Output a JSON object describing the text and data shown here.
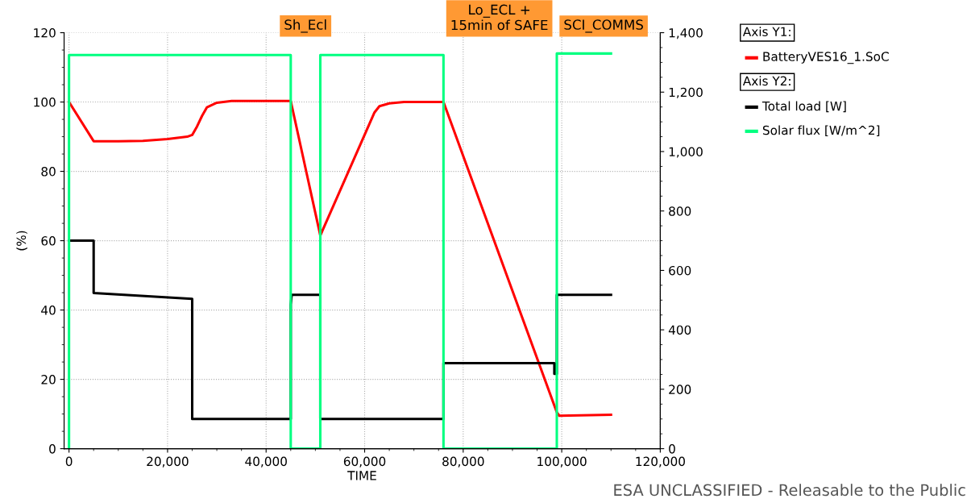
{
  "chart_data": {
    "type": "line",
    "xlabel": "TIME",
    "ylabel": "(%)",
    "xlim": [
      -1000,
      120000
    ],
    "xticks": [
      {
        "value": 0,
        "label": "0"
      },
      {
        "value": 20000,
        "label": "20,000"
      },
      {
        "value": 40000,
        "label": "40,000"
      },
      {
        "value": 60000,
        "label": "60,000"
      },
      {
        "value": 80000,
        "label": "80,000"
      },
      {
        "value": 100000,
        "label": "100,000"
      },
      {
        "value": 120000,
        "label": "120,000"
      }
    ],
    "ylim": [
      0,
      120
    ],
    "yticks": [
      0,
      20,
      40,
      60,
      80,
      100,
      120
    ],
    "y2lim": [
      0,
      1400
    ],
    "y2ticks": [
      0,
      200,
      400,
      600,
      800,
      {
        "value": 1000,
        "label": "1,000"
      },
      {
        "value": 1200,
        "label": "1,200"
      },
      {
        "value": 1400,
        "label": "1,400"
      }
    ],
    "grid": true,
    "legend": "right",
    "marker": "none",
    "line_style": "solid",
    "series": [
      {
        "name": "BatteryVES16_1.SoC",
        "color": "#ff0000",
        "x": [
          0,
          5000,
          10000,
          15000,
          20000,
          24000,
          25000,
          26000,
          27000,
          28000,
          30000,
          33000,
          45000,
          51000,
          62000,
          63000,
          65000,
          68000,
          76000,
          99000,
          99500,
          110000
        ],
        "values": [
          100,
          88.7,
          88.7,
          88.8,
          89.3,
          90,
          90.5,
          93,
          96,
          98.5,
          99.8,
          100.3,
          100.3,
          61.5,
          97,
          98.8,
          99.6,
          100,
          100,
          10.5,
          9.5,
          9.8
        ]
      },
      {
        "name": "Total load [W]",
        "color": "#000000",
        "axis": "y2",
        "x": [
          0,
          5000,
          5000,
          25000,
          25000,
          45000,
          45000,
          45200,
          51000,
          51000,
          76000,
          76000,
          98500,
          98500,
          99000,
          99000,
          110000
        ],
        "values": [
          700,
          700,
          524,
          504,
          100,
          100,
          485,
          518,
          518,
          100,
          100,
          288,
          288,
          252,
          252,
          518,
          518
        ]
      },
      {
        "name": "Solar flux [W/m^2]",
        "color": "#00ff80",
        "axis": "y2",
        "x": [
          0,
          0,
          45000,
          45000,
          51000,
          51000,
          76000,
          76000,
          99000,
          99000,
          110000
        ],
        "values": [
          0,
          1325,
          1325,
          0,
          0,
          1325,
          1325,
          0,
          0,
          1330,
          1330
        ]
      }
    ],
    "annotations": [
      "Axis Y1:",
      "Axis Y2:",
      "ESA UNCLASSIFIED - Releasable to the Public",
      "Sh_Ecl",
      "Lo_ECL +\n15min of SAFE",
      "SCI_COMMS"
    ]
  }
}
